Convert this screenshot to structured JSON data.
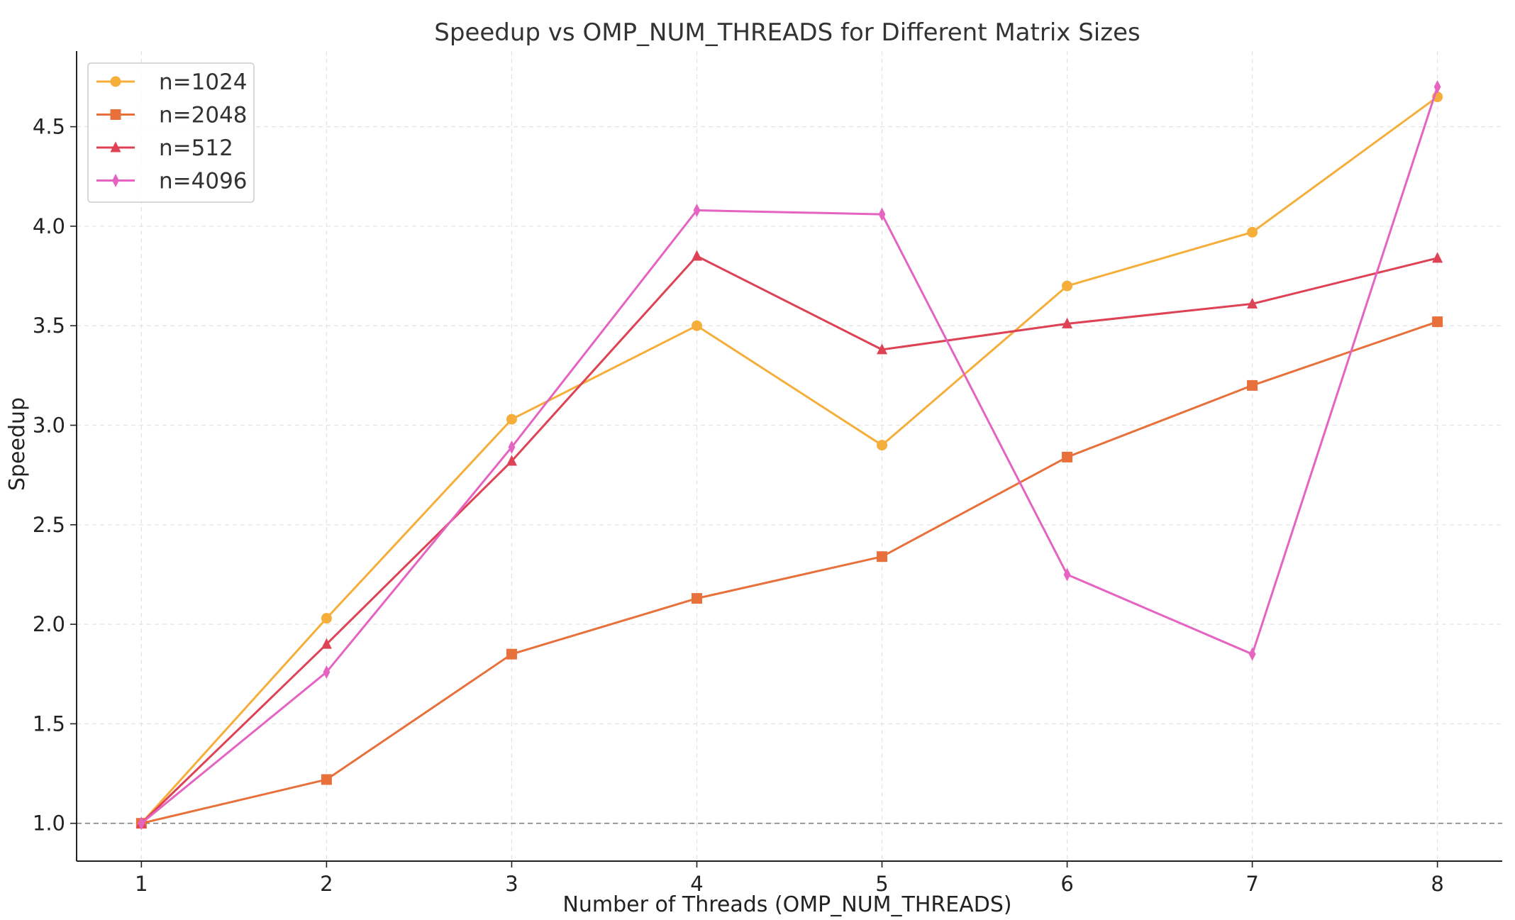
{
  "chart_data": {
    "type": "line",
    "title": "Speedup vs OMP_NUM_THREADS for Different Matrix Sizes",
    "xlabel": "Number of Threads (OMP_NUM_THREADS)",
    "ylabel": "Speedup",
    "x": [
      1,
      2,
      3,
      4,
      5,
      6,
      7,
      8
    ],
    "xlim": [
      0.65,
      8.35
    ],
    "ylim": [
      0.81,
      4.88
    ],
    "yticks": [
      1.0,
      1.5,
      2.0,
      2.5,
      3.0,
      3.5,
      4.0,
      4.5
    ],
    "ytick_labels": [
      "1.0",
      "1.5",
      "2.0",
      "2.5",
      "3.0",
      "3.5",
      "4.0",
      "4.5"
    ],
    "xtick_labels": [
      "1",
      "2",
      "3",
      "4",
      "5",
      "6",
      "7",
      "8"
    ],
    "grid": true,
    "reference_line": {
      "y": 1.0,
      "style": "dashed",
      "color": "#808080"
    },
    "legend_position": "top-left",
    "series": [
      {
        "name": "n=1024",
        "marker": "circle",
        "color": "#F5AE3A",
        "values": [
          1.0,
          2.03,
          3.03,
          3.5,
          2.9,
          3.7,
          3.97,
          4.65
        ]
      },
      {
        "name": "n=2048",
        "marker": "square",
        "color": "#E8703A",
        "values": [
          1.0,
          1.22,
          1.85,
          2.13,
          2.34,
          2.84,
          3.2,
          3.52
        ]
      },
      {
        "name": "n=512",
        "marker": "triangle",
        "color": "#DE4255",
        "values": [
          1.0,
          1.9,
          2.82,
          3.85,
          3.38,
          3.51,
          3.61,
          3.84
        ]
      },
      {
        "name": "n=4096",
        "marker": "diamond",
        "color": "#E563C1",
        "values": [
          1.0,
          1.76,
          2.89,
          4.08,
          4.06,
          2.25,
          1.85,
          4.7
        ]
      }
    ]
  }
}
